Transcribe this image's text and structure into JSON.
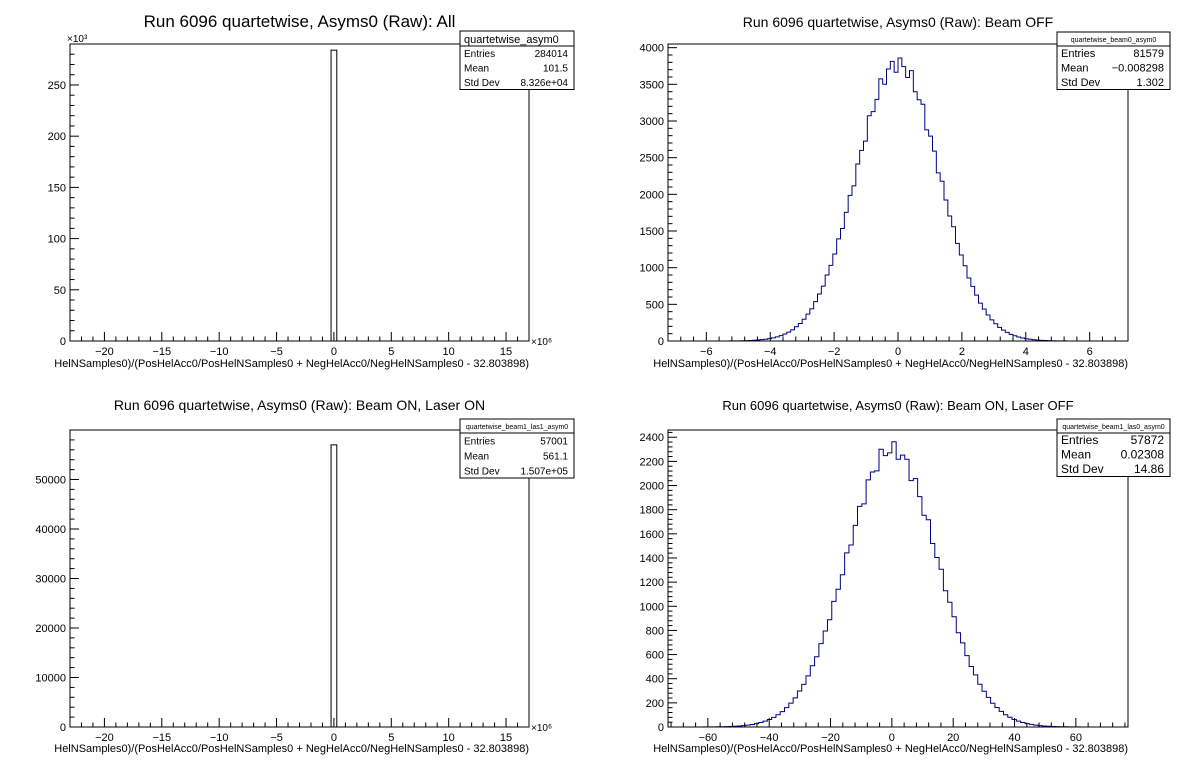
{
  "chart_data": [
    {
      "type": "bar",
      "title": "Run 6096 quartetwise, Asyms0 (Raw): All",
      "xlabel": "HelNSamples0)/(PosHelAcc0/PosHelNSamples0 + NegHelAcc0/NegHelNSamples0 - 32.803898)",
      "xlim": [
        -23,
        17
      ],
      "ylim": [
        0,
        290
      ],
      "x_exponent": "×10⁶",
      "y_exponent": "×10³",
      "x_ticks": [
        -20,
        -15,
        -10,
        -5,
        0,
        5,
        10,
        15
      ],
      "y_ticks": [
        0,
        50,
        100,
        150,
        200,
        250
      ],
      "bin_width": 0.5,
      "values": [
        {
          "x": 0,
          "y": 284
        }
      ],
      "line_color": "#000000",
      "stats": {
        "name": "quartetwise_asym0",
        "entries": "284014",
        "mean": "101.5",
        "std_dev": "8.326e+04"
      }
    },
    {
      "type": "bar",
      "title": "Run 6096 quartetwise, Asyms0 (Raw): Beam OFF",
      "xlabel": "HelNSamples0)/(PosHelAcc0/PosHelNSamples0 + NegHelAcc0/NegHelNSamples0 - 32.803898)",
      "xlim": [
        -7.2,
        7.2
      ],
      "ylim": [
        0,
        4050
      ],
      "x_exponent": "",
      "y_exponent": "",
      "x_ticks": [
        -6,
        -4,
        -2,
        0,
        2,
        4,
        6
      ],
      "y_ticks": [
        0,
        500,
        1000,
        1500,
        2000,
        2500,
        3000,
        3500,
        4000
      ],
      "gaussian": {
        "mean": -0.008,
        "sigma": 1.3,
        "amplitude": 3780,
        "bin_width": 0.12,
        "range": [
          -6.6,
          6.6
        ]
      },
      "line_color": "#000080",
      "stats": {
        "name": "quartetwise_beam0_asym0",
        "entries": "81579",
        "mean": "−0.008298",
        "std_dev": "1.302"
      }
    },
    {
      "type": "bar",
      "title": "Run 6096 quartetwise, Asyms0 (Raw): Beam ON, Laser ON",
      "xlabel": "HelNSamples0)/(PosHelAcc0/PosHelNSamples0 + NegHelAcc0/NegHelNSamples0 - 32.803898)",
      "xlim": [
        -23,
        17
      ],
      "ylim": [
        0,
        60000
      ],
      "x_exponent": "×10⁶",
      "y_exponent": "",
      "x_ticks": [
        -20,
        -15,
        -10,
        -5,
        0,
        5,
        10,
        15
      ],
      "y_ticks": [
        0,
        10000,
        20000,
        30000,
        40000,
        50000
      ],
      "bin_width": 0.5,
      "values": [
        {
          "x": 0,
          "y": 57001
        }
      ],
      "line_color": "#000000",
      "stats": {
        "name": "quartetwise_beam1_las1_asym0",
        "entries": "57001",
        "mean": "561.1",
        "std_dev": "1.507e+05"
      }
    },
    {
      "type": "bar",
      "title": "Run 6096 quartetwise, Asyms0 (Raw): Beam ON, Laser OFF",
      "xlabel": "HelNSamples0)/(PosHelAcc0/PosHelNSamples0 + NegHelAcc0/NegHelNSamples0 - 32.803898)",
      "xlim": [
        -73,
        77
      ],
      "ylim": [
        0,
        2460
      ],
      "x_exponent": "",
      "y_exponent": "",
      "x_ticks": [
        -60,
        -40,
        -20,
        0,
        20,
        40,
        60
      ],
      "y_ticks": [
        0,
        200,
        400,
        600,
        800,
        1000,
        1200,
        1400,
        1600,
        1800,
        2000,
        2200,
        2400
      ],
      "gaussian": {
        "mean": 0.02,
        "sigma": 14.86,
        "amplitude": 2300,
        "bin_width": 1.4,
        "range": [
          -70,
          70
        ]
      },
      "line_color": "#000080",
      "stats": {
        "name": "quartetwise_beam1_las0_asym0",
        "entries": "57872",
        "mean": "0.02308",
        "std_dev": "14.86"
      }
    }
  ],
  "labels": {
    "entries": "Entries",
    "mean": "Mean",
    "std_dev": "Std Dev"
  }
}
